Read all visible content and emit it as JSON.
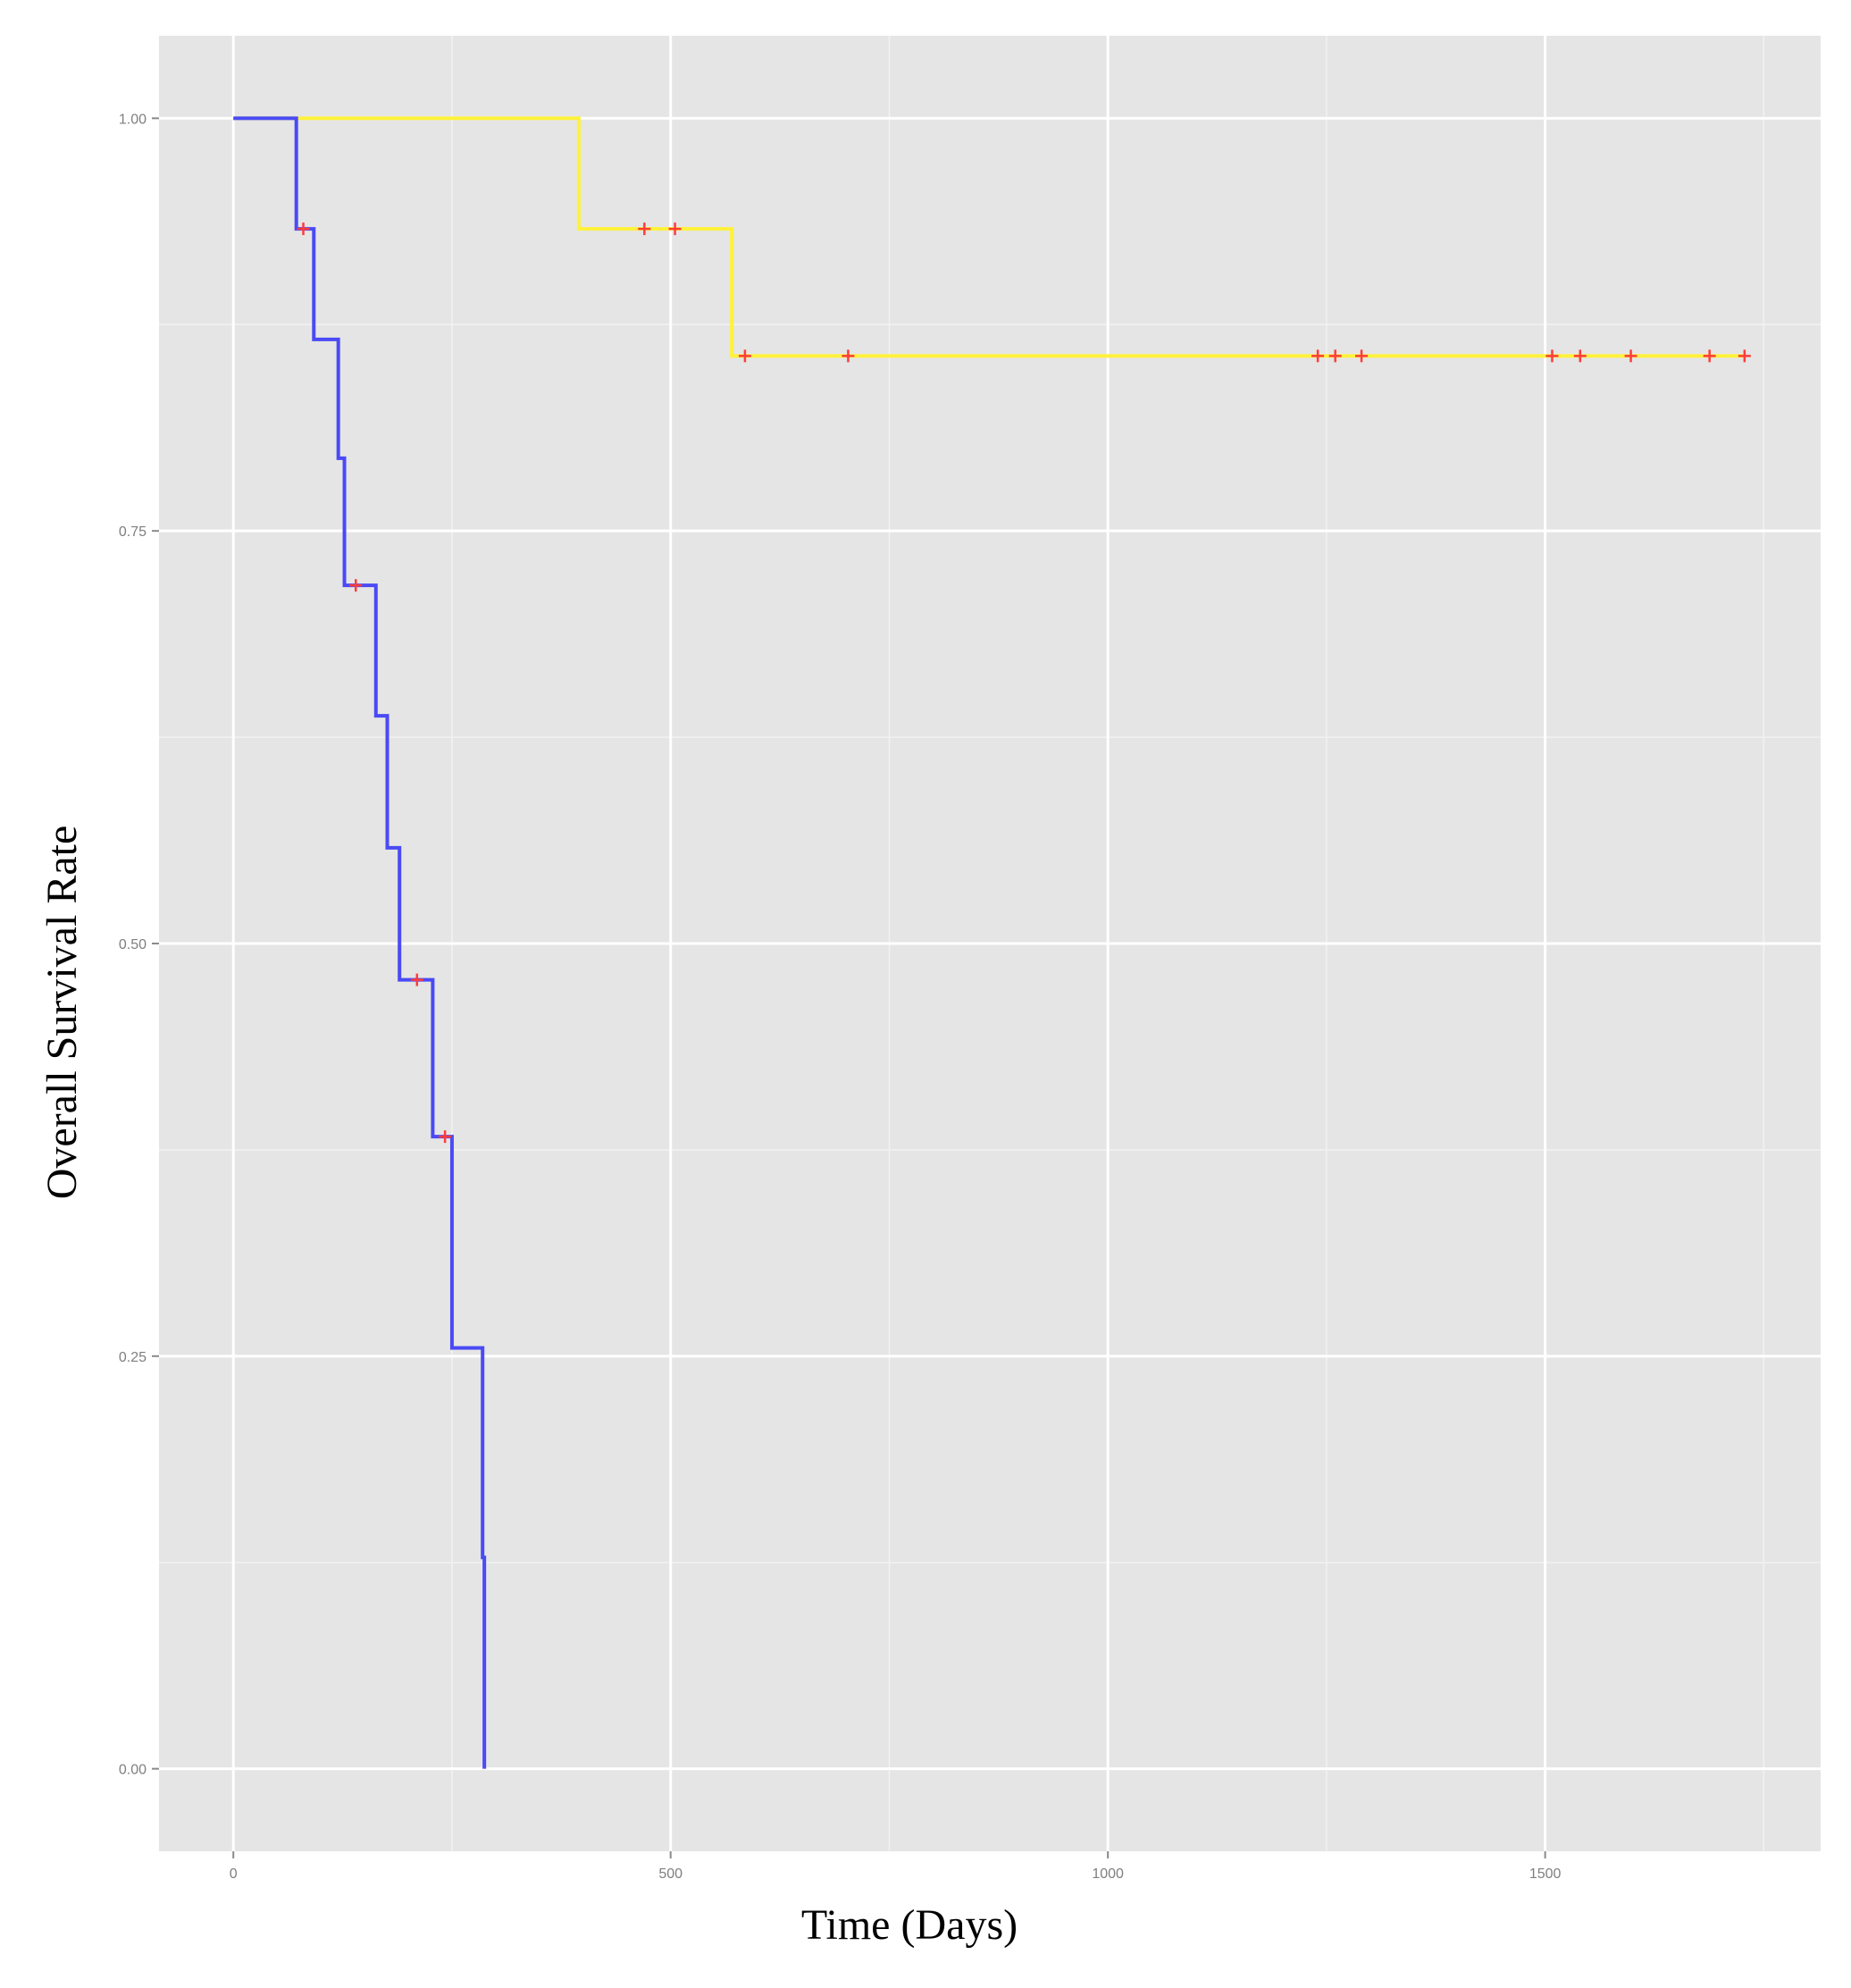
{
  "chart_data": {
    "type": "line",
    "step": "post",
    "title": "",
    "xlabel": "Time  (Days)",
    "ylabel": "Overall Survival  Rate",
    "xlim": [
      -85,
      1815
    ],
    "ylim": [
      -0.05,
      1.05
    ],
    "x_ticks": [
      {
        "value": 0,
        "label": "0"
      },
      {
        "value": 500,
        "label": "500"
      },
      {
        "value": 1000,
        "label": "1000"
      },
      {
        "value": 1500,
        "label": "1500"
      }
    ],
    "x_minor_ticks": [
      250,
      750,
      1250,
      1750
    ],
    "y_ticks": [
      {
        "value": 0.0,
        "label": "0.00"
      },
      {
        "value": 0.25,
        "label": "0.25"
      },
      {
        "value": 0.5,
        "label": "0.50"
      },
      {
        "value": 0.75,
        "label": "0.75"
      },
      {
        "value": 1.0,
        "label": "1.00"
      }
    ],
    "y_minor_ticks": [
      0.125,
      0.375,
      0.625,
      0.875
    ],
    "grid": true,
    "legend": "none",
    "colors": {
      "panel": "#e5e5e5",
      "grid_major": "#ffffff",
      "grid_minor": "#f2f2f2",
      "censor_mark": "#ff3b3b"
    },
    "series": [
      {
        "color": "#fff23a",
        "x": [
          0,
          395,
          570,
          1728
        ],
        "y": [
          1.0,
          0.933,
          0.856,
          0.856
        ],
        "censored": [
          {
            "x": 470,
            "y": 0.933
          },
          {
            "x": 505,
            "y": 0.933
          },
          {
            "x": 585,
            "y": 0.856
          },
          {
            "x": 703,
            "y": 0.856
          },
          {
            "x": 1240,
            "y": 0.856
          },
          {
            "x": 1260,
            "y": 0.856
          },
          {
            "x": 1290,
            "y": 0.856
          },
          {
            "x": 1508,
            "y": 0.856
          },
          {
            "x": 1540,
            "y": 0.856
          },
          {
            "x": 1598,
            "y": 0.856
          },
          {
            "x": 1688,
            "y": 0.856
          },
          {
            "x": 1728,
            "y": 0.856
          }
        ]
      },
      {
        "color": "#4a4af5",
        "x": [
          0,
          72,
          92,
          120,
          127,
          163,
          176,
          190,
          228,
          250,
          285,
          287
        ],
        "y": [
          1.0,
          0.933,
          0.866,
          0.794,
          0.717,
          0.638,
          0.558,
          0.478,
          0.383,
          0.255,
          0.128,
          0.0
        ],
        "censored": [
          {
            "x": 80,
            "y": 0.933
          },
          {
            "x": 140,
            "y": 0.717
          },
          {
            "x": 210,
            "y": 0.478
          },
          {
            "x": 242,
            "y": 0.383
          }
        ]
      }
    ]
  }
}
